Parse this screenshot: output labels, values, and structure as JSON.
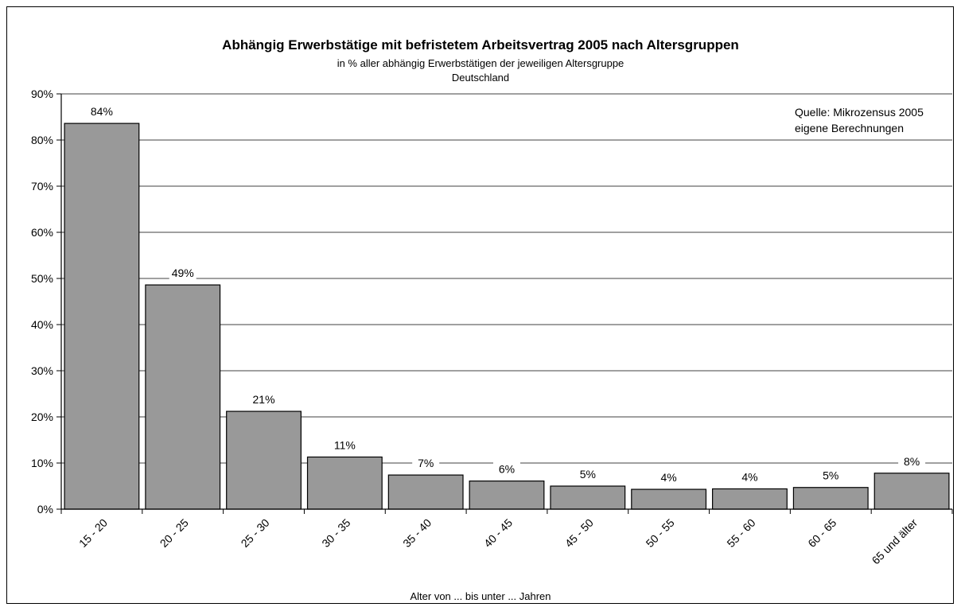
{
  "chart_data": {
    "type": "bar",
    "title": "Abhängig Erwerbstätige mit befristetem Arbeitsvertrag 2005 nach Altersgruppen",
    "subtitle": "in % aller abhängig Erwerbstätigen der jeweiligen Altersgruppe",
    "subtitle2": "Deutschland",
    "source_lines": [
      "Quelle: Mikrozensus 2005",
      "eigene Berechnungen"
    ],
    "xlabel": "Alter von ... bis unter ... Jahren",
    "ylabel": "",
    "categories": [
      "15   -   20",
      "20   -   25",
      "25   -   30",
      "30   -   35",
      "35   -   40",
      "40   -   45",
      "45   -   50",
      "50   -   55",
      "55   -   60",
      "60   -   65",
      "65 und älter"
    ],
    "values": [
      83.6,
      48.6,
      21.2,
      11.3,
      7.4,
      6.1,
      5.0,
      4.3,
      4.4,
      4.7,
      7.8
    ],
    "value_labels": [
      "84%",
      "49%",
      "21%",
      "11%",
      "7%",
      "6%",
      "5%",
      "4%",
      "4%",
      "5%",
      "8%"
    ],
    "ylim": [
      0,
      90
    ],
    "y_ticks": [
      0,
      10,
      20,
      30,
      40,
      50,
      60,
      70,
      80,
      90
    ],
    "y_tick_labels": [
      "0%",
      "10%",
      "20%",
      "30%",
      "40%",
      "50%",
      "60%",
      "70%",
      "80%",
      "90%"
    ],
    "grid": true,
    "legend": "none",
    "colors": {
      "bar": "#999999",
      "grid": "#000000"
    }
  }
}
